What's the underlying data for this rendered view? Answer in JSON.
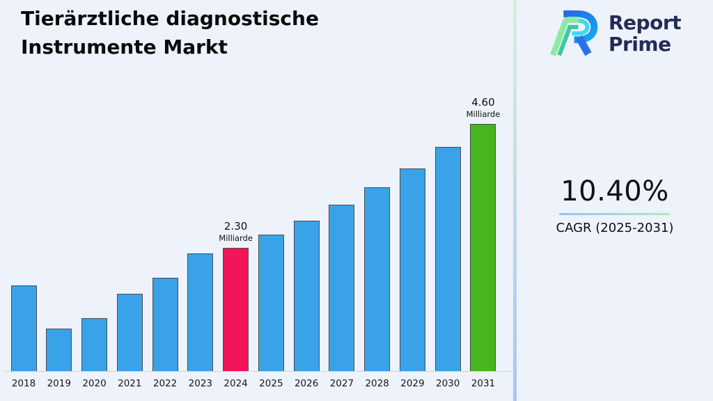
{
  "page": {
    "background": "#edf2fb",
    "divider_gradient": [
      "#d6f0da",
      "#a9c6f2"
    ]
  },
  "header": {
    "title_line1": "Tierärztliche diagnostische",
    "title_line2": "Instrumente Markt"
  },
  "brand": {
    "name_line1": "Report",
    "name_line2": "Prime",
    "logo_icon": "report-prime-logo",
    "text_color": "#232c55",
    "logo_colors": {
      "blue_dark": "#2a66e8",
      "blue_light": "#14a8f2",
      "cyan": "#3edbee",
      "green_light": "#8deba0",
      "teal": "#3cc9a2"
    }
  },
  "stats": {
    "cagr_value": "10.40%",
    "cagr_label": "CAGR (2025-2031)",
    "underline_gradient": [
      "#9cc0f2",
      "#b2e8c0"
    ]
  },
  "chart_data": {
    "type": "bar",
    "title": "Tierärztliche diagnostische Instrumente Markt",
    "xlabel": "",
    "ylabel": "",
    "unit": "Milliarde",
    "categories": [
      "2018",
      "2019",
      "2020",
      "2021",
      "2022",
      "2023",
      "2024",
      "2025",
      "2026",
      "2027",
      "2028",
      "2029",
      "2030",
      "2031"
    ],
    "values": [
      1.6,
      0.8,
      1.0,
      1.45,
      1.75,
      2.2,
      2.3,
      2.54,
      2.8,
      3.1,
      3.42,
      3.77,
      4.17,
      4.6
    ],
    "ylim": [
      0,
      4.6
    ],
    "grid": false,
    "legend": false,
    "bar_colors": {
      "default": "#3aa2e9",
      "2024": "#f4145a",
      "2031": "#48b51e"
    },
    "bar_border_color": "#4c4c4c",
    "annotations": [
      {
        "category": "2024",
        "value_label": "2.30",
        "unit_label": "Milliarde"
      },
      {
        "category": "2031",
        "value_label": "4.60",
        "unit_label": "Milliarde"
      }
    ]
  }
}
